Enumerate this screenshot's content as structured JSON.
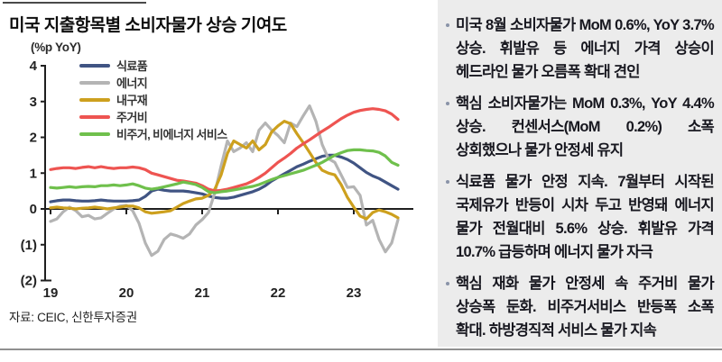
{
  "chart": {
    "title": "미국 지출항목별 소비자물가 상승 기여도",
    "unit": "(%p YoY)",
    "source": "자료: CEIC, 신한투자증권"
  },
  "chart_data": {
    "type": "line",
    "title": "미국 지출항목별 소비자물가 상승 기여도",
    "ylabel": "(%p YoY)",
    "ylim": [
      -2,
      4
    ],
    "grid": false,
    "legend_position": "top-left",
    "y_ticks": [
      4,
      3,
      2,
      1,
      0,
      -1,
      -2
    ],
    "y_tick_labels": [
      "4",
      "3",
      "2",
      "1",
      "0",
      "(1)",
      "(2)"
    ],
    "x_tick_labels": [
      "19",
      "20",
      "21",
      "22",
      "23"
    ],
    "x_start": "2019-01",
    "x_end": "2023-08",
    "x_frequency": "monthly",
    "series": [
      {
        "name": "식료품",
        "color": "#405483",
        "values": [
          0.2,
          0.23,
          0.25,
          0.25,
          0.23,
          0.22,
          0.22,
          0.23,
          0.25,
          0.23,
          0.22,
          0.22,
          0.22,
          0.23,
          0.25,
          0.35,
          0.5,
          0.55,
          0.52,
          0.5,
          0.5,
          0.5,
          0.48,
          0.45,
          0.42,
          0.36,
          0.32,
          0.3,
          0.3,
          0.33,
          0.38,
          0.43,
          0.48,
          0.55,
          0.65,
          0.78,
          0.88,
          0.98,
          1.08,
          1.18,
          1.25,
          1.33,
          1.4,
          1.47,
          1.5,
          1.5,
          1.45,
          1.38,
          1.28,
          1.15,
          1.02,
          0.92,
          0.85,
          0.75,
          0.65,
          0.55
        ]
      },
      {
        "name": "에너지",
        "color": "#b4b4b4",
        "values": [
          -0.35,
          -0.28,
          -0.08,
          0.05,
          -0.05,
          -0.22,
          -0.18,
          -0.28,
          -0.25,
          -0.12,
          0.0,
          0.08,
          0.1,
          -0.05,
          -0.4,
          -0.95,
          -1.3,
          -1.18,
          -0.85,
          -0.7,
          -0.75,
          -0.82,
          -0.7,
          -0.45,
          -0.3,
          -0.1,
          0.45,
          1.2,
          1.9,
          1.6,
          1.7,
          1.85,
          1.6,
          2.2,
          2.4,
          2.2,
          2.05,
          1.85,
          2.4,
          2.3,
          2.6,
          2.88,
          2.45,
          1.8,
          1.4,
          1.3,
          0.95,
          0.6,
          0.62,
          0.38,
          -0.45,
          -0.32,
          -0.85,
          -1.2,
          -0.95,
          -0.3
        ]
      },
      {
        "name": "내구재",
        "color": "#cda01e",
        "values": [
          0.03,
          0.05,
          0.03,
          0.02,
          0.0,
          0.02,
          0.03,
          0.05,
          0.03,
          0.0,
          0.03,
          0.05,
          0.08,
          0.08,
          0.03,
          -0.08,
          -0.12,
          -0.1,
          -0.08,
          -0.05,
          0.05,
          0.15,
          0.22,
          0.28,
          0.3,
          0.38,
          0.55,
          0.95,
          1.55,
          1.9,
          1.8,
          1.7,
          1.9,
          1.65,
          1.8,
          2.15,
          2.32,
          2.45,
          2.38,
          2.1,
          1.85,
          1.58,
          1.3,
          1.08,
          1.0,
          0.95,
          0.68,
          0.32,
          0.05,
          -0.2,
          -0.28,
          -0.1,
          -0.03,
          -0.08,
          -0.15,
          -0.25
        ]
      },
      {
        "name": "주거비",
        "color": "#ee5451",
        "values": [
          1.1,
          1.13,
          1.15,
          1.15,
          1.13,
          1.16,
          1.18,
          1.15,
          1.18,
          1.15,
          1.13,
          1.15,
          1.15,
          1.17,
          1.15,
          1.1,
          1.0,
          0.95,
          0.9,
          0.85,
          0.8,
          0.78,
          0.75,
          0.72,
          0.65,
          0.55,
          0.5,
          0.52,
          0.55,
          0.6,
          0.65,
          0.7,
          0.78,
          0.88,
          1.0,
          1.15,
          1.3,
          1.42,
          1.55,
          1.7,
          1.82,
          1.93,
          2.05,
          2.17,
          2.28,
          2.4,
          2.52,
          2.62,
          2.7,
          2.75,
          2.78,
          2.8,
          2.78,
          2.74,
          2.65,
          2.5
        ]
      },
      {
        "name": "비주거, 비에너지 서비스",
        "color": "#6fc04c",
        "values": [
          0.6,
          0.58,
          0.6,
          0.62,
          0.6,
          0.62,
          0.63,
          0.62,
          0.65,
          0.65,
          0.67,
          0.65,
          0.67,
          0.7,
          0.65,
          0.58,
          0.55,
          0.58,
          0.62,
          0.66,
          0.7,
          0.75,
          0.72,
          0.68,
          0.6,
          0.48,
          0.45,
          0.48,
          0.5,
          0.53,
          0.56,
          0.6,
          0.63,
          0.68,
          0.75,
          0.82,
          0.88,
          0.93,
          0.98,
          1.03,
          1.08,
          1.15,
          1.22,
          1.3,
          1.4,
          1.5,
          1.57,
          1.63,
          1.65,
          1.65,
          1.63,
          1.62,
          1.58,
          1.48,
          1.3,
          1.22
        ]
      }
    ]
  },
  "commentary": {
    "bullets": [
      "미국 8월 소비자물가 MoM 0.6%, YoY 3.7% 상승. 휘발유 등 에너지 가격 상승이 헤드라인 물가 오름폭 확대 견인",
      "핵심 소비자물가는 MoM 0.3%, YoY 4.4% 상승. 컨센서스(MoM 0.2%) 소폭 상회했으나 물가 안정세 유지",
      "식료품 물가 안정 지속. 7월부터 시작된 국제유가 반등이 시차 두고 반영돼 에너지 물가 전월대비 5.6% 상승. 휘발유 가격 10.7% 급등하며 에너지 물가 자극",
      "핵심 재화 물가 안정세 속 주거비 물가 상승폭 둔화. 비주거서비스 반등폭 소폭 확대. 하방경직적 서비스 물가 지속"
    ]
  }
}
